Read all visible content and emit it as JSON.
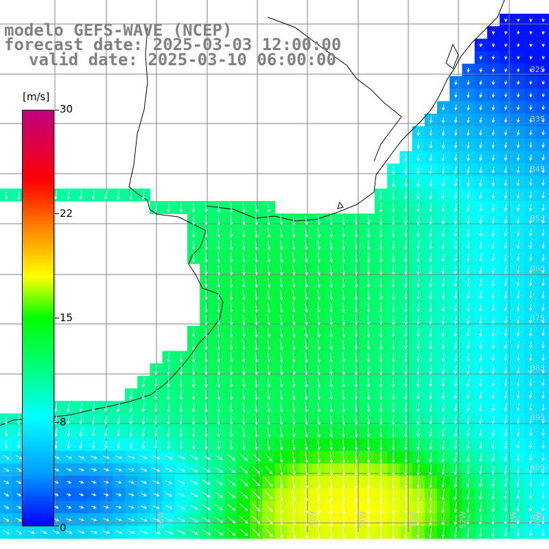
{
  "title": {
    "line1": "modelo GEFS-WAVE (NCEP)",
    "line2": "forecast date: 2025-03-03 12:00:00",
    "line3": "valid date: 2025-03-10 06:00:00"
  },
  "colorbar": {
    "unit": "[m/s]",
    "ticks": [
      "30",
      "22",
      "15",
      "8",
      "0"
    ],
    "colors": [
      "#0000ff",
      "#00a0ff",
      "#00ffff",
      "#00ff00",
      "#ffff00",
      "#ff8000",
      "#ff0000",
      "#c00080"
    ]
  },
  "lat_labels": [
    "32S",
    "33S",
    "34S",
    "35S",
    "36S",
    "37S",
    "38S",
    "39S",
    "40S",
    "41S"
  ],
  "lon_labels": [
    "56W",
    "55W",
    "54W",
    "53W",
    "52W",
    "51W",
    "50W"
  ],
  "colors": {
    "land": "#ffffff",
    "coast": "#000000",
    "grid": "#808080",
    "arrow": "#ffffff"
  }
}
